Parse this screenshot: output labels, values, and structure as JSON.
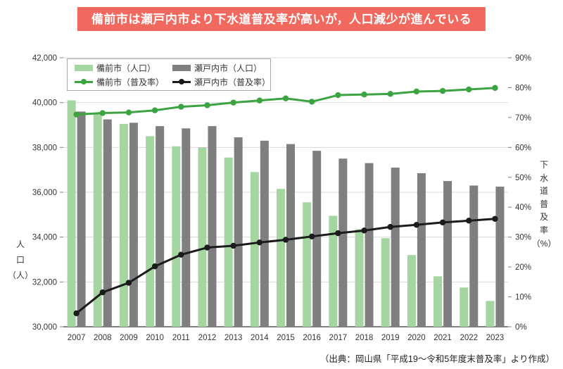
{
  "title": "備前市は瀬戸内市より下水道普及率が高いが，人口減少が進んでいる",
  "source": "（出典：岡山県「平成19～令和5年度末普及率」より作成）",
  "colors": {
    "banner_bg": "#f0685e",
    "bizen_bar": "#a5d5a0",
    "setouchi_bar": "#7f7f7f",
    "bizen_line": "#3ba441",
    "setouchi_line": "#1b1b1b",
    "grid": "#d9d9d9",
    "axis_line": "#595959",
    "tick": "#808080",
    "tick_label": "#333333"
  },
  "legend": {
    "items": [
      {
        "label": "備前市（人口）",
        "swatch": "bar",
        "color_key": "bizen_bar"
      },
      {
        "label": "瀬戸内市（人口）",
        "swatch": "bar",
        "color_key": "setouchi_bar"
      },
      {
        "label": "備前市（普及率）",
        "swatch": "line",
        "color_key": "bizen_line"
      },
      {
        "label": "瀬戸内市（普及率）",
        "swatch": "line",
        "color_key": "setouchi_line"
      }
    ]
  },
  "axes": {
    "left": {
      "title_lines": [
        "人",
        "口",
        "（人）"
      ]
    },
    "right": {
      "title_lines": [
        "下",
        "水",
        "道",
        "普",
        "及",
        "率",
        "（%）"
      ]
    }
  },
  "chart_data": {
    "type": "bar",
    "subtype": "bar-line combo, dual axis",
    "title": "備前市は瀬戸内市より下水道普及率が高いが，人口減少が進んでいる",
    "categories": [
      "2007",
      "2008",
      "2009",
      "2010",
      "2011",
      "2012",
      "2013",
      "2014",
      "2015",
      "2016",
      "2017",
      "2018",
      "2019",
      "2020",
      "2021",
      "2022",
      "2023"
    ],
    "series": [
      {
        "name": "備前市（人口）",
        "type": "bar",
        "axis": "left",
        "color_key": "bizen_bar",
        "values": [
          40100,
          39500,
          39050,
          38500,
          38050,
          38000,
          37550,
          36900,
          36150,
          35550,
          34950,
          34350,
          33950,
          33200,
          32250,
          31750,
          31150
        ]
      },
      {
        "name": "瀬戸内市（人口）",
        "type": "bar",
        "axis": "left",
        "color_key": "setouchi_bar",
        "values": [
          39600,
          39250,
          39100,
          38950,
          38850,
          38950,
          38450,
          38300,
          38150,
          37850,
          37500,
          37300,
          37100,
          36850,
          36500,
          36300,
          36250
        ]
      },
      {
        "name": "備前市（普及率）",
        "type": "line",
        "axis": "right",
        "color_key": "bizen_line",
        "values": [
          71.0,
          71.5,
          71.7,
          72.4,
          73.6,
          74.1,
          75.0,
          75.7,
          76.4,
          75.3,
          77.5,
          77.7,
          77.9,
          78.7,
          78.9,
          79.4,
          79.9
        ]
      },
      {
        "name": "瀬戸内市（普及率）",
        "type": "line",
        "axis": "right",
        "color_key": "setouchi_line",
        "values": [
          4.5,
          11.5,
          14.7,
          20.2,
          24.1,
          26.5,
          27.1,
          28.2,
          29.1,
          30.2,
          31.3,
          32.2,
          33.4,
          34.1,
          34.9,
          35.5,
          36.1
        ]
      }
    ],
    "left_axis": {
      "label": "人口（人）",
      "min": 30000,
      "max": 42000,
      "tick_step": 2000,
      "tick_labels": [
        "30,000",
        "32,000",
        "34,000",
        "36,000",
        "38,000",
        "40,000",
        "42,000"
      ]
    },
    "right_axis": {
      "label": "下水道普及率（%）",
      "min": 0,
      "max": 90,
      "tick_step": 10,
      "tick_labels": [
        "0%",
        "10%",
        "20%",
        "30%",
        "40%",
        "50%",
        "60%",
        "70%",
        "80%",
        "90%"
      ]
    },
    "grid": "horizontal, at left-axis ticks",
    "legend_position": "inside top-left, boxed"
  }
}
